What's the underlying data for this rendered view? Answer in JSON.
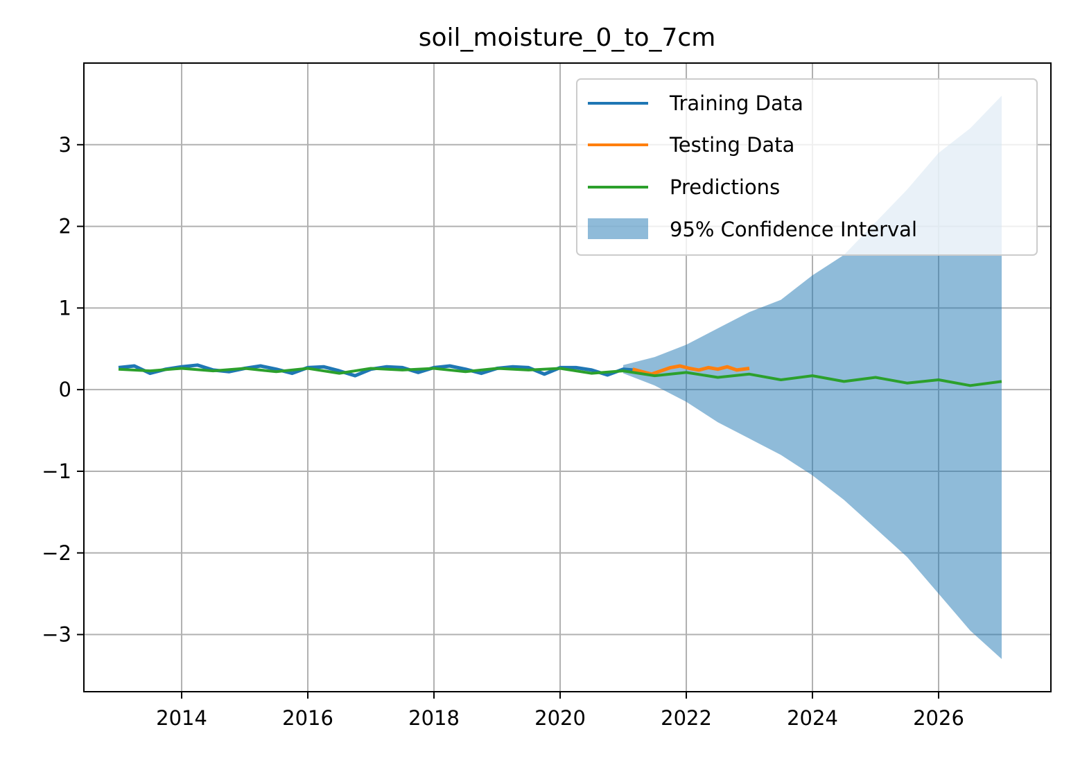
{
  "chart_data": {
    "type": "line",
    "title": "soil_moisture_0_to_7cm",
    "xlabel": "",
    "ylabel": "",
    "x_axis": "date (decimal year)",
    "xlim": [
      2012.45,
      2027.78
    ],
    "ylim": [
      -3.7,
      4.0
    ],
    "xticks": [
      2014,
      2016,
      2018,
      2020,
      2022,
      2024,
      2026
    ],
    "xtick_labels": [
      "2014",
      "2016",
      "2018",
      "2020",
      "2022",
      "2024",
      "2026"
    ],
    "yticks": [
      -3,
      -2,
      -1,
      0,
      1,
      2,
      3
    ],
    "ytick_labels": [
      "−3",
      "−2",
      "−1",
      "0",
      "1",
      "2",
      "3"
    ],
    "grid": true,
    "legend_position": "top-right",
    "series": [
      {
        "name": "Training Data",
        "color": "#1f77b4",
        "kind": "line",
        "x": [
          2013.0,
          2013.25,
          2013.5,
          2013.75,
          2014.0,
          2014.25,
          2014.5,
          2014.75,
          2015.0,
          2015.25,
          2015.5,
          2015.75,
          2016.0,
          2016.25,
          2016.5,
          2016.75,
          2017.0,
          2017.25,
          2017.5,
          2017.75,
          2018.0,
          2018.25,
          2018.5,
          2018.75,
          2019.0,
          2019.25,
          2019.5,
          2019.75,
          2020.0,
          2020.25,
          2020.5,
          2020.75,
          2021.0,
          2021.15
        ],
        "y": [
          0.27,
          0.29,
          0.2,
          0.25,
          0.28,
          0.3,
          0.24,
          0.22,
          0.26,
          0.29,
          0.25,
          0.2,
          0.27,
          0.28,
          0.23,
          0.17,
          0.25,
          0.28,
          0.27,
          0.21,
          0.27,
          0.29,
          0.25,
          0.2,
          0.26,
          0.28,
          0.27,
          0.19,
          0.27,
          0.27,
          0.24,
          0.18,
          0.25,
          0.24
        ]
      },
      {
        "name": "Testing Data",
        "color": "#ff7f0e",
        "kind": "line",
        "x": [
          2021.15,
          2021.3,
          2021.45,
          2021.6,
          2021.75,
          2021.9,
          2022.05,
          2022.2,
          2022.35,
          2022.5,
          2022.65,
          2022.8,
          2023.0
        ],
        "y": [
          0.25,
          0.22,
          0.19,
          0.23,
          0.27,
          0.29,
          0.26,
          0.24,
          0.27,
          0.25,
          0.28,
          0.24,
          0.26
        ]
      },
      {
        "name": "Predictions",
        "color": "#2ca02c",
        "kind": "line",
        "x": [
          2013.0,
          2013.5,
          2014.0,
          2014.5,
          2015.0,
          2015.5,
          2016.0,
          2016.5,
          2017.0,
          2017.5,
          2018.0,
          2018.5,
          2019.0,
          2019.5,
          2020.0,
          2020.5,
          2021.0,
          2021.5,
          2022.0,
          2022.5,
          2023.0,
          2023.5,
          2024.0,
          2024.5,
          2025.0,
          2025.5,
          2026.0,
          2026.5,
          2027.0
        ],
        "y": [
          0.25,
          0.23,
          0.26,
          0.23,
          0.26,
          0.22,
          0.26,
          0.2,
          0.26,
          0.24,
          0.26,
          0.22,
          0.26,
          0.24,
          0.26,
          0.2,
          0.23,
          0.17,
          0.21,
          0.15,
          0.19,
          0.12,
          0.17,
          0.1,
          0.15,
          0.08,
          0.12,
          0.05,
          0.1
        ]
      }
    ],
    "confidence_interval": {
      "name": "95% Confidence Interval",
      "color": "#1f77b4",
      "opacity": 0.5,
      "x": [
        2021.0,
        2021.5,
        2022.0,
        2022.5,
        2023.0,
        2023.5,
        2024.0,
        2024.5,
        2025.0,
        2025.5,
        2026.0,
        2026.5,
        2027.0
      ],
      "upper": [
        0.3,
        0.4,
        0.55,
        0.75,
        0.95,
        1.1,
        1.4,
        1.65,
        2.05,
        2.45,
        2.9,
        3.2,
        3.6
      ],
      "lower": [
        0.2,
        0.05,
        -0.15,
        -0.4,
        -0.6,
        -0.8,
        -1.05,
        -1.35,
        -1.7,
        -2.05,
        -2.5,
        -2.95,
        -3.3
      ]
    }
  }
}
